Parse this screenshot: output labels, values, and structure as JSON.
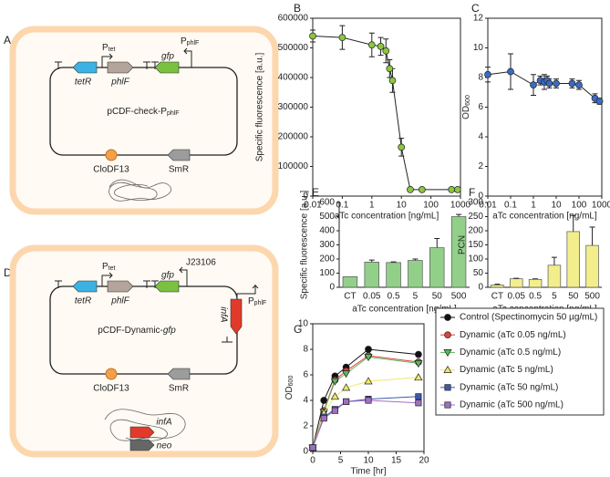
{
  "diagrams": [
    {
      "label": "A",
      "genes": [
        "tetR",
        "phlF",
        "gfp"
      ],
      "promoters": [
        {
          "text": "P",
          "sub": "tet"
        },
        {
          "text": "P",
          "sub": "phlF"
        }
      ],
      "plasmid": {
        "text": "pCDF-check-P",
        "sub": "phlF"
      },
      "origin": "CloDF13",
      "marker": "SmR"
    },
    {
      "label": "D",
      "genes": [
        "tetR",
        "phlF",
        "gfp",
        "infA"
      ],
      "promoters": [
        {
          "text": "P",
          "sub": "tet"
        },
        "J23106",
        {
          "text": "P",
          "sub": "phlF"
        }
      ],
      "plasmid": {
        "text": "pCDF-Dynamic-",
        "em": "gfp"
      },
      "origin": "CloDF13",
      "marker": "SmR",
      "chromosome_genes": [
        "infA",
        "neo"
      ]
    }
  ],
  "chart_data": [
    {
      "type": "line",
      "label": "B",
      "y_label": "Specific fluorescence [a.u.]",
      "x_label": "aTc concentration [ng/mL]",
      "x": [
        0.01,
        0.1,
        1,
        2,
        3,
        4,
        5,
        10,
        20,
        50,
        500,
        800
      ],
      "values": [
        540000,
        535000,
        510000,
        505000,
        490000,
        430000,
        390000,
        165000,
        22000,
        22000,
        22000,
        22000
      ],
      "errors": [
        20000,
        40000,
        40000,
        30000,
        40000,
        30000,
        40000,
        30000,
        3000,
        3000,
        3000,
        3000
      ],
      "color": "#8cc63f",
      "xlog": true,
      "xlim": [
        0.01,
        1000
      ],
      "xticks": [
        0.01,
        0.1,
        1,
        10,
        100,
        1000
      ],
      "ylim": [
        0,
        600000
      ],
      "yticks": [
        0,
        100000,
        200000,
        300000,
        400000,
        500000,
        600000
      ]
    },
    {
      "type": "line",
      "label": "C",
      "y_label": {
        "text": "OD",
        "sub": "600"
      },
      "x_label": "aTc concentration [ng/mL]",
      "x": [
        0.01,
        0.1,
        1,
        2,
        3,
        4,
        5,
        10,
        50,
        100,
        500,
        800
      ],
      "values": [
        8.2,
        8.4,
        7.5,
        7.8,
        7.7,
        7.8,
        7.6,
        7.6,
        7.6,
        7.5,
        6.6,
        6.4
      ],
      "errors": [
        0.5,
        1.2,
        0.7,
        0.3,
        0.5,
        0.3,
        0.3,
        0.3,
        0.3,
        0.3,
        0.3,
        0.2
      ],
      "color": "#3b6bc4",
      "xlog": true,
      "xlim": [
        0.01,
        1000
      ],
      "xticks": [
        0.01,
        0.1,
        1,
        10,
        100,
        1000
      ],
      "ylim": [
        0,
        12
      ],
      "yticks": [
        0,
        2,
        4,
        6,
        8,
        10,
        12
      ]
    },
    {
      "type": "bar",
      "label": "E",
      "y_label": "Specific fluorescence [a.u.]",
      "x_label": "aTc concentration [ng/mL]",
      "categories": [
        "CT",
        "0.05",
        "0.5",
        "5",
        "50",
        "500"
      ],
      "values": [
        75,
        178,
        175,
        190,
        280,
        500
      ],
      "errors": [
        null,
        15,
        5,
        10,
        65,
        15
      ],
      "color": "#92d08a",
      "ylim": [
        0,
        600
      ],
      "yticks": [
        0,
        100,
        200,
        300,
        400,
        500,
        600
      ]
    },
    {
      "type": "bar",
      "label": "F",
      "y_label": "PCN",
      "x_label": "aTc concentration [ng/mL]",
      "categories": [
        "CT",
        "0.05",
        "0.5",
        "5",
        "50",
        "500"
      ],
      "values": [
        8,
        30,
        28,
        78,
        197,
        148
      ],
      "errors": [
        3,
        2,
        2,
        28,
        57,
        65
      ],
      "color": "#f3ee8c",
      "ylim": [
        0,
        300
      ],
      "yticks": [
        0,
        50,
        100,
        150,
        200,
        250,
        300
      ]
    },
    {
      "type": "line",
      "label": "G",
      "y_label": {
        "text": "OD",
        "sub": "600"
      },
      "x_label": "Time [hr]",
      "x": [
        0,
        2,
        4,
        6,
        10,
        19
      ],
      "xlim": [
        0,
        20
      ],
      "xticks": [
        0,
        5,
        10,
        15,
        20
      ],
      "ylim": [
        0,
        10
      ],
      "yticks": [
        0,
        2,
        4,
        6,
        8,
        10
      ],
      "series": [
        {
          "name": "Control (Spectinomycin 50 µg/mL)",
          "color": "#111111",
          "marker": "circle",
          "values": [
            0.3,
            4.0,
            5.9,
            6.6,
            8.0,
            7.6
          ]
        },
        {
          "name": "Dynamic (aTc 0.05 ng/mL)",
          "color": "#e0403a",
          "marker": "circle",
          "values": [
            0.3,
            3.2,
            5.6,
            6.3,
            7.5,
            7.0
          ]
        },
        {
          "name": "Dynamic (aTc 0.5 ng/mL)",
          "color": "#5cb85c",
          "marker": "triangle-down",
          "values": [
            0.3,
            3.1,
            5.5,
            6.1,
            7.4,
            6.9
          ]
        },
        {
          "name": "Dynamic (aTc 5 ng/mL)",
          "color": "#f0e86a",
          "marker": "triangle-up",
          "values": [
            0.3,
            3.0,
            4.3,
            5.0,
            5.5,
            5.8
          ]
        },
        {
          "name": "Dynamic (aTc 50 ng/mL)",
          "color": "#3b5bb0",
          "marker": "square",
          "values": [
            0.3,
            2.7,
            3.3,
            3.9,
            4.1,
            4.3
          ]
        },
        {
          "name": "Dynamic (aTc 500 ng/mL)",
          "color": "#a070c0",
          "marker": "square",
          "values": [
            0.3,
            2.6,
            3.2,
            3.9,
            4.0,
            3.8
          ]
        }
      ]
    }
  ]
}
